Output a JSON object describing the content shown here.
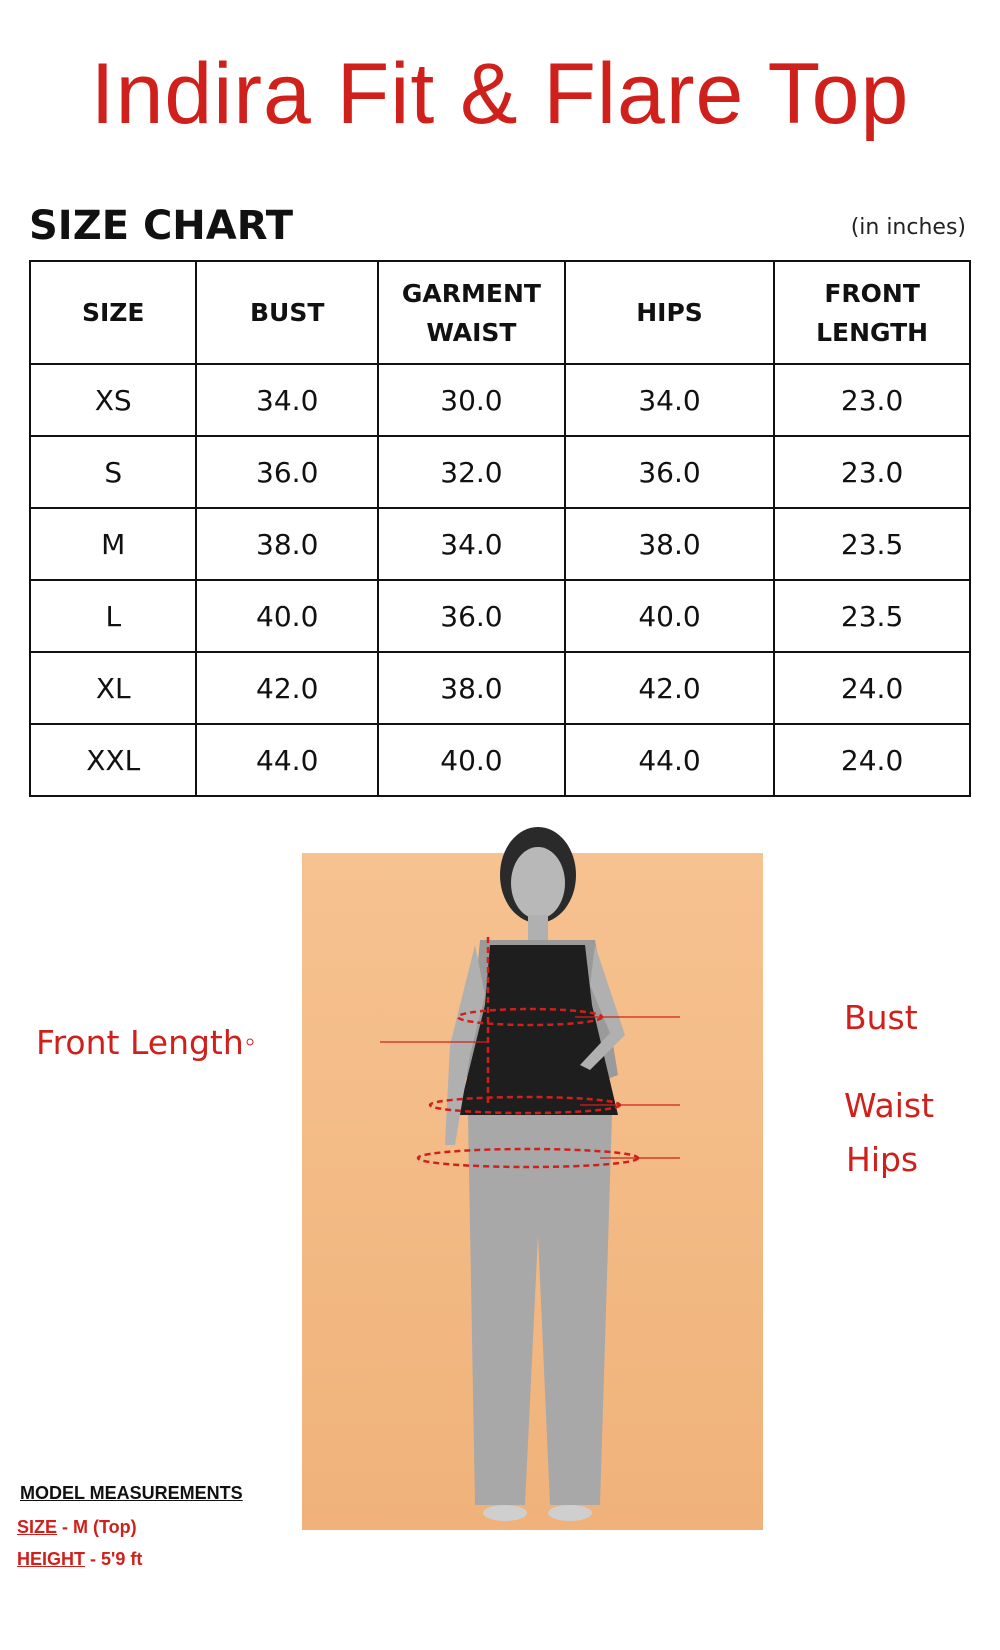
{
  "title": "Indira Fit & Flare Top",
  "size_chart": {
    "heading": "SIZE CHART",
    "unit": "(in inches)",
    "headers": [
      "SIZE",
      "BUST",
      "GARMENT WAIST",
      "HIPS",
      "FRONT LENGTH"
    ],
    "rows": [
      [
        "XS",
        "34.0",
        "30.0",
        "34.0",
        "23.0"
      ],
      [
        "S",
        "36.0",
        "32.0",
        "36.0",
        "23.0"
      ],
      [
        "M",
        "38.0",
        "34.0",
        "38.0",
        "23.5"
      ],
      [
        "L",
        "40.0",
        "36.0",
        "40.0",
        "23.5"
      ],
      [
        "XL",
        "42.0",
        "38.0",
        "42.0",
        "24.0"
      ],
      [
        "XXL",
        "44.0",
        "40.0",
        "44.0",
        "24.0"
      ]
    ]
  },
  "labels": {
    "front_length": "Front Length",
    "bust": "Bust",
    "waist": "Waist",
    "hips": "Hips"
  },
  "model": {
    "heading": "MODEL MEASUREMENTS",
    "size_label": "SIZE",
    "size_value": "-  M (Top)",
    "height_label": "HEIGHT",
    "height_value": "-  5'9 ft"
  },
  "colors": {
    "accent": "#d0201b",
    "photo_bg": "#f3b985"
  }
}
